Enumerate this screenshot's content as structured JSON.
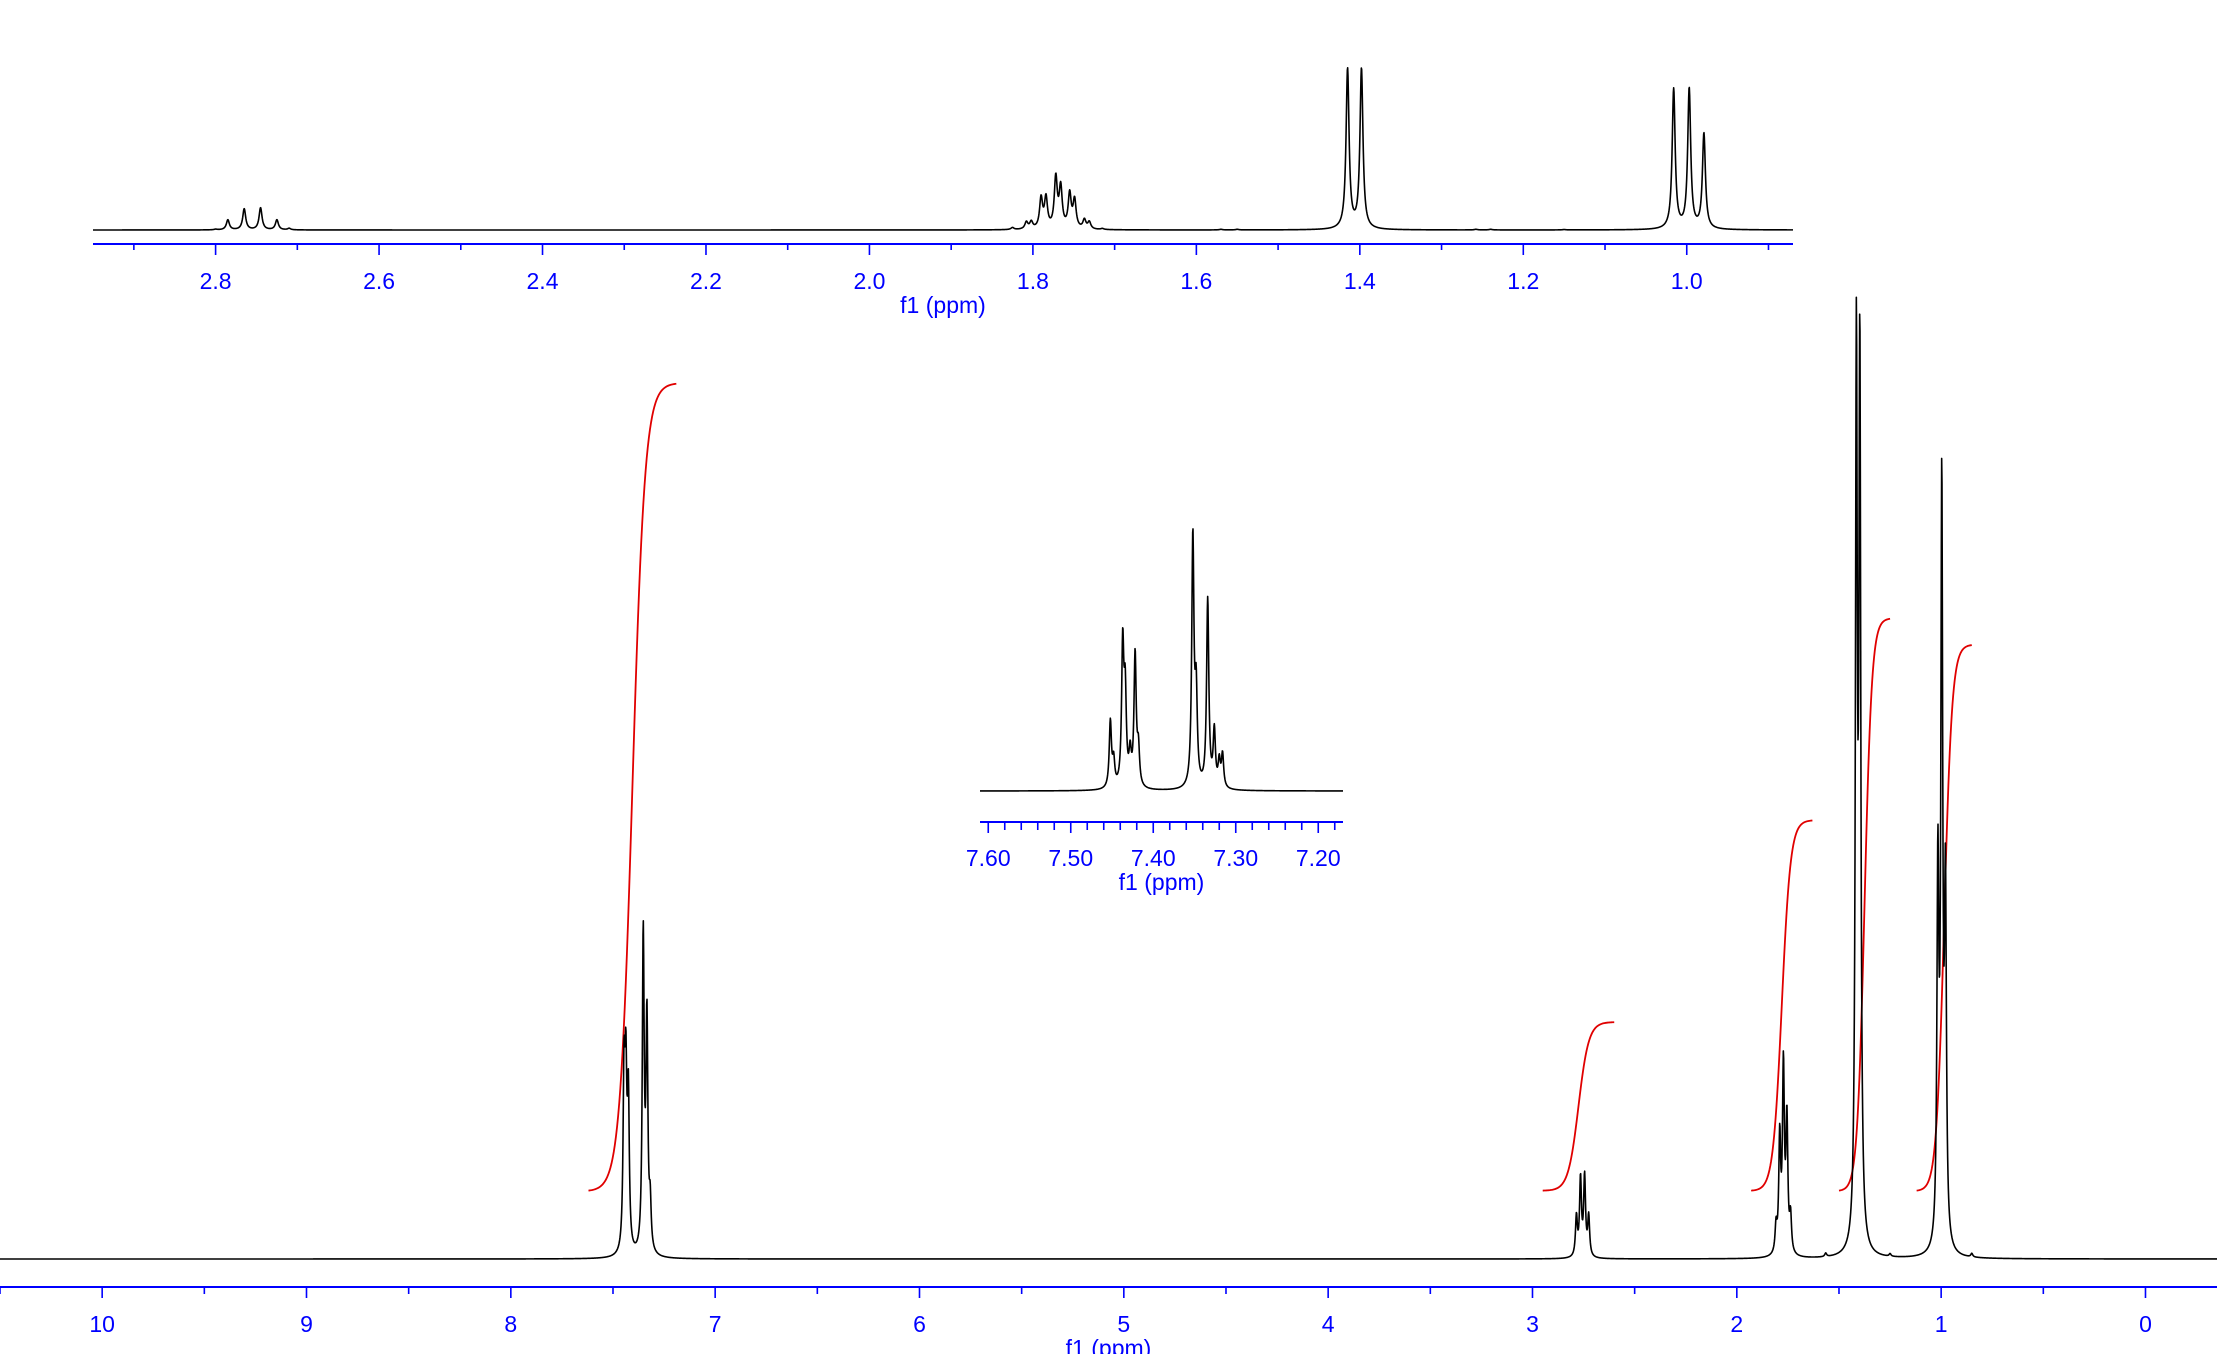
{
  "chart_data": [
    {
      "id": "top",
      "type": "line",
      "xlabel": "f1 (ppm)",
      "x_range": [
        2.95,
        0.87
      ],
      "x_ticks": [
        "2.8",
        "2.6",
        "2.4",
        "2.2",
        "2.0",
        "1.8",
        "1.6",
        "1.4",
        "1.2",
        "1.0"
      ],
      "peaks": [
        {
          "ppm": 2.8,
          "h": 0.006
        },
        {
          "ppm": 2.785,
          "h": 0.1
        },
        {
          "ppm": 2.765,
          "h": 0.21
        },
        {
          "ppm": 2.745,
          "h": 0.22
        },
        {
          "ppm": 2.725,
          "h": 0.1
        },
        {
          "ppm": 2.71,
          "h": 0.015
        },
        {
          "ppm": 1.825,
          "h": 0.02
        },
        {
          "ppm": 1.808,
          "h": 0.07
        },
        {
          "ppm": 1.802,
          "h": 0.07
        },
        {
          "ppm": 1.79,
          "h": 0.3
        },
        {
          "ppm": 1.784,
          "h": 0.3
        },
        {
          "ppm": 1.772,
          "h": 0.5
        },
        {
          "ppm": 1.766,
          "h": 0.4
        },
        {
          "ppm": 1.755,
          "h": 0.34
        },
        {
          "ppm": 1.749,
          "h": 0.28
        },
        {
          "ppm": 1.737,
          "h": 0.09
        },
        {
          "ppm": 1.731,
          "h": 0.07
        },
        {
          "ppm": 1.715,
          "h": 0.01
        },
        {
          "ppm": 1.415,
          "h": 1.6
        },
        {
          "ppm": 1.398,
          "h": 1.6
        },
        {
          "ppm": 1.57,
          "h": 0.006
        },
        {
          "ppm": 1.55,
          "h": 0.006
        },
        {
          "ppm": 1.258,
          "h": 0.006
        },
        {
          "ppm": 1.24,
          "h": 0.006
        },
        {
          "ppm": 1.15,
          "h": 0.004
        },
        {
          "ppm": 1.016,
          "h": 1.4
        },
        {
          "ppm": 0.997,
          "h": 1.4
        },
        {
          "ppm": 0.979,
          "h": 0.95
        }
      ],
      "line_width": 0.0022
    },
    {
      "id": "inset",
      "type": "line",
      "xlabel": "f1 (ppm)",
      "x_range": [
        7.61,
        7.17
      ],
      "x_ticks": [
        "7.60",
        "7.50",
        "7.40",
        "7.30",
        "7.20"
      ],
      "peaks": [
        {
          "ppm": 7.452,
          "h": 0.26
        },
        {
          "ppm": 7.448,
          "h": 0.1
        },
        {
          "ppm": 7.437,
          "h": 0.55
        },
        {
          "ppm": 7.434,
          "h": 0.35
        },
        {
          "ppm": 7.428,
          "h": 0.12
        },
        {
          "ppm": 7.422,
          "h": 0.52
        },
        {
          "ppm": 7.418,
          "h": 0.14
        },
        {
          "ppm": 7.352,
          "h": 0.98
        },
        {
          "ppm": 7.348,
          "h": 0.35
        },
        {
          "ppm": 7.334,
          "h": 0.74
        },
        {
          "ppm": 7.326,
          "h": 0.22
        },
        {
          "ppm": 7.32,
          "h": 0.1
        },
        {
          "ppm": 7.316,
          "h": 0.13
        }
      ],
      "line_width": 0.0016
    },
    {
      "id": "main",
      "type": "line",
      "xlabel": "f1 (ppm)",
      "x_range": [
        10.5,
        -0.35
      ],
      "x_ticks": [
        "10",
        "9",
        "8",
        "7",
        "6",
        "5",
        "4",
        "3",
        "2",
        "1",
        "0"
      ],
      "peaks": [
        {
          "ppm": 7.446,
          "h": 0.19
        },
        {
          "ppm": 7.437,
          "h": 0.18
        },
        {
          "ppm": 7.425,
          "h": 0.17
        },
        {
          "ppm": 7.352,
          "h": 0.36
        },
        {
          "ppm": 7.334,
          "h": 0.26
        },
        {
          "ppm": 7.318,
          "h": 0.05
        },
        {
          "ppm": 2.785,
          "h": 0.045
        },
        {
          "ppm": 2.765,
          "h": 0.088
        },
        {
          "ppm": 2.745,
          "h": 0.09
        },
        {
          "ppm": 2.725,
          "h": 0.045
        },
        {
          "ppm": 1.808,
          "h": 0.03
        },
        {
          "ppm": 1.79,
          "h": 0.13
        },
        {
          "ppm": 1.772,
          "h": 0.21
        },
        {
          "ppm": 1.755,
          "h": 0.15
        },
        {
          "ppm": 1.737,
          "h": 0.04
        },
        {
          "ppm": 1.415,
          "h": 1.0
        },
        {
          "ppm": 1.398,
          "h": 0.99
        },
        {
          "ppm": 1.016,
          "h": 0.42
        },
        {
          "ppm": 0.997,
          "h": 0.85
        },
        {
          "ppm": 0.979,
          "h": 0.39
        },
        {
          "ppm": 1.565,
          "h": 0.004
        },
        {
          "ppm": 1.25,
          "h": 0.003
        },
        {
          "ppm": 0.85,
          "h": 0.004
        }
      ],
      "line_width": 0.0055,
      "integrals": [
        {
          "from": 7.62,
          "to": 7.19,
          "y0": 0.078,
          "y1": 0.998
        },
        {
          "from": 2.95,
          "to": 2.6,
          "y0": 0.078,
          "y1": 0.27
        },
        {
          "from": 1.93,
          "to": 1.63,
          "y0": 0.078,
          "y1": 0.5
        },
        {
          "from": 1.5,
          "to": 1.25,
          "y0": 0.078,
          "y1": 0.73
        },
        {
          "from": 1.12,
          "to": 0.85,
          "y0": 0.078,
          "y1": 0.7
        }
      ]
    }
  ]
}
